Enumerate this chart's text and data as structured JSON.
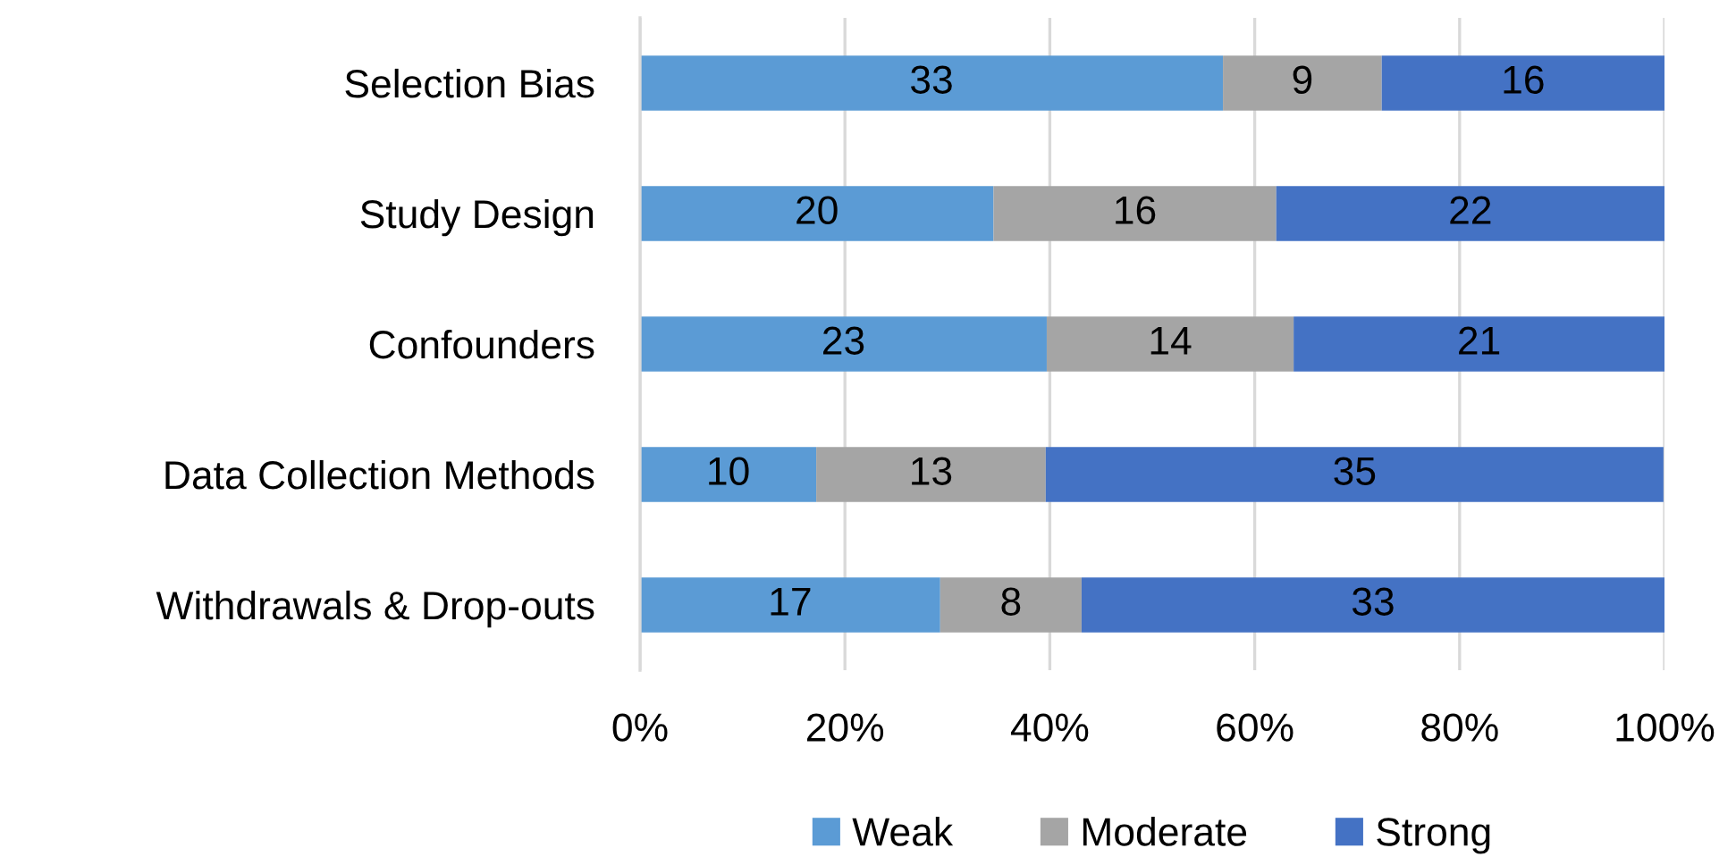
{
  "chart_data": {
    "type": "bar",
    "orientation": "horizontal",
    "stacked": true,
    "categories": [
      "Selection Bias",
      "Study Design",
      "Confounders",
      "Data Collection Methods",
      "Withdrawals & Drop-outs"
    ],
    "series": [
      {
        "name": "Weak",
        "color": "#5b9bd5",
        "values": [
          56.9,
          34.5,
          39.7,
          17.2,
          29.3
        ]
      },
      {
        "name": "Moderate",
        "color": "#a5a5a5",
        "values": [
          15.5,
          27.6,
          24.1,
          22.4,
          13.8
        ]
      },
      {
        "name": "Strong",
        "color": "#4472c4",
        "values": [
          27.6,
          37.9,
          36.2,
          60.3,
          56.9
        ]
      }
    ],
    "annotations": [
      "33",
      "9",
      "16",
      "20",
      "16",
      "22",
      "23",
      "14",
      "21",
      "10",
      "13",
      "35",
      "17",
      "8",
      "33"
    ],
    "xlim": [
      0,
      100
    ],
    "xticks": [
      {
        "value": 0,
        "label": "0%"
      },
      {
        "value": 20,
        "label": "20%"
      },
      {
        "value": 40,
        "label": "40%"
      },
      {
        "value": 60,
        "label": "60%"
      },
      {
        "value": 80,
        "label": "80%"
      },
      {
        "value": 100,
        "label": "100%"
      }
    ],
    "grid": "x",
    "legend": "bottom"
  }
}
